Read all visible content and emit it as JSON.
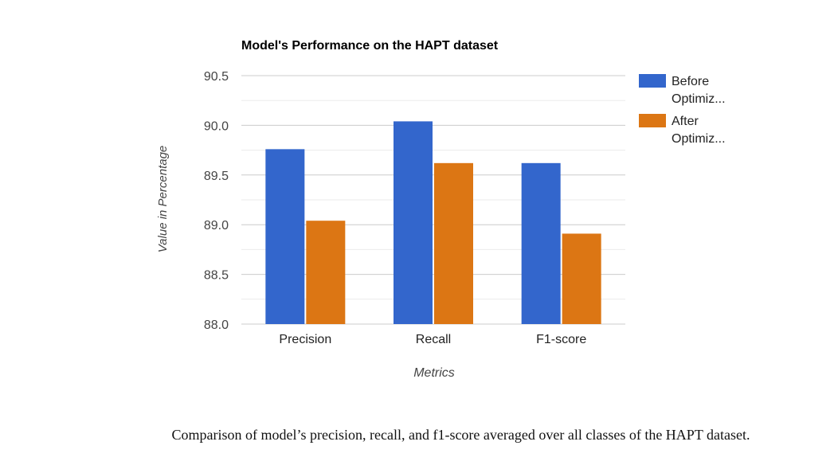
{
  "chart_data": {
    "type": "bar",
    "title": "Model's Performance on the HAPT dataset",
    "xlabel": "Metrics",
    "ylabel": "Value in Percentage",
    "categories": [
      "Precision",
      "Recall",
      "F1-score"
    ],
    "series": [
      {
        "name": "Before Optimiz...",
        "color": "#3366cc",
        "values": [
          89.76,
          90.04,
          89.62
        ]
      },
      {
        "name": "After Optimiz...",
        "color": "#dc7614",
        "values": [
          89.04,
          89.62,
          88.91
        ]
      }
    ],
    "ylim": [
      88.0,
      90.5
    ],
    "yticks": [
      "88.0",
      "88.5",
      "89.0",
      "89.5",
      "90.0",
      "90.5"
    ],
    "grid": true,
    "legend": "right"
  },
  "caption": "Comparison of model’s precision, recall, and f1-score averaged over all classes of the HAPT dataset."
}
